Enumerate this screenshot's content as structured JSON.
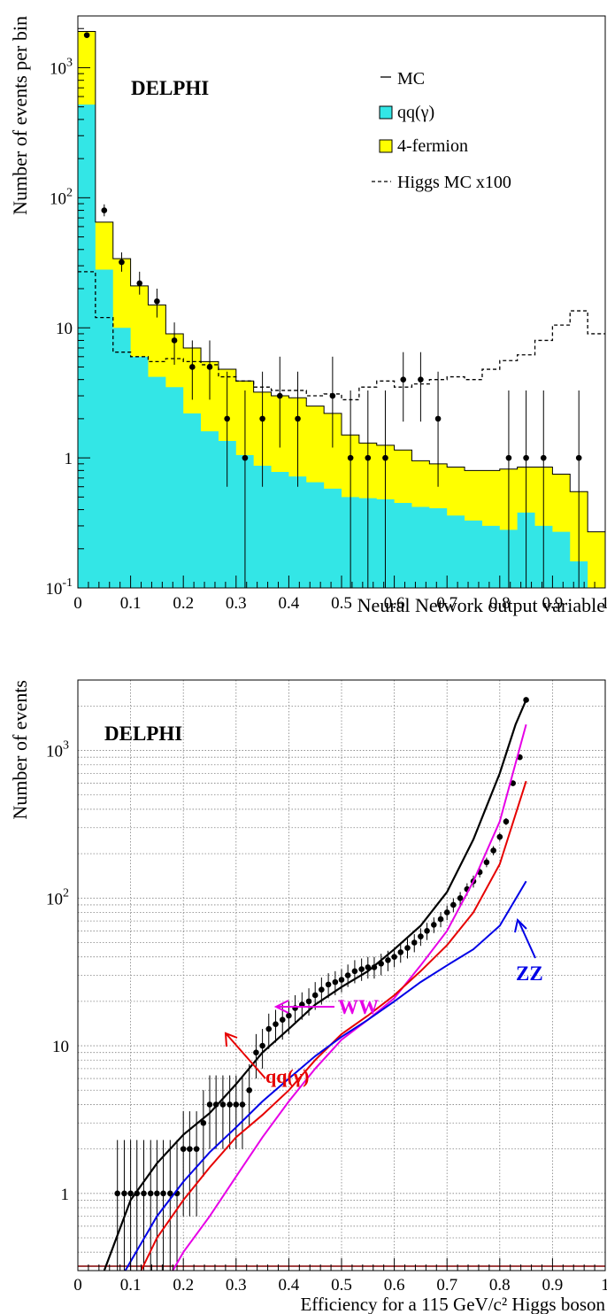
{
  "colors": {
    "qq": "#33e6e6",
    "fourf": "#ffff00",
    "ww": "#e600e6",
    "qqcurve": "#e60000",
    "zz": "#0000e6",
    "total": "#000000"
  },
  "chart_data": [
    {
      "type": "histogram",
      "title": "DELPHI",
      "xlabel": "Neural Network output variable",
      "ylabel": "Number of events per bin",
      "xlim": [
        0,
        1
      ],
      "ylim": [
        0.1,
        2500
      ],
      "yscale": "log",
      "x_ticks": [
        "0",
        "0.1",
        "0.2",
        "0.3",
        "0.4",
        "0.5",
        "0.6",
        "0.7",
        "0.8",
        "0.9",
        "1"
      ],
      "y_ticks": [
        {
          "v": 0.1,
          "base": "10",
          "exp": "-1"
        },
        {
          "v": 1,
          "base": "1",
          "exp": ""
        },
        {
          "v": 10,
          "base": "10",
          "exp": ""
        },
        {
          "v": 100,
          "base": "10",
          "exp": "2"
        },
        {
          "v": 1000,
          "base": "10",
          "exp": "3"
        }
      ],
      "legend_position": "top-right",
      "legend": {
        "mc": "MC",
        "qq": "qq(γ)",
        "fourf": "4-fermion",
        "higgs": "Higgs MC x100"
      },
      "bin_edges": [
        0,
        0.0333,
        0.0667,
        0.1,
        0.1333,
        0.1667,
        0.2,
        0.2333,
        0.2667,
        0.3,
        0.3333,
        0.3667,
        0.4,
        0.4333,
        0.4667,
        0.5,
        0.5333,
        0.5667,
        0.6,
        0.6333,
        0.6667,
        0.7,
        0.7333,
        0.7667,
        0.8,
        0.8333,
        0.8667,
        0.9,
        0.9333,
        0.9667,
        1.0
      ],
      "series": [
        {
          "name": "qq(γ)",
          "values": [
            520,
            28,
            10,
            6,
            4.2,
            3.5,
            2.2,
            1.6,
            1.35,
            1.05,
            0.87,
            0.78,
            0.72,
            0.65,
            0.58,
            0.5,
            0.49,
            0.48,
            0.45,
            0.42,
            0.41,
            0.36,
            0.33,
            0.3,
            0.28,
            0.38,
            0.3,
            0.27,
            0.16,
            0.1
          ]
        },
        {
          "name": "MC",
          "values": [
            1900,
            65,
            34,
            21,
            15,
            9,
            7,
            5.5,
            4.8,
            3.9,
            3.2,
            3.0,
            2.9,
            2.5,
            2.2,
            1.5,
            1.3,
            1.25,
            1.15,
            0.95,
            0.9,
            0.85,
            0.8,
            0.8,
            0.82,
            0.85,
            0.85,
            0.75,
            0.55,
            0.27
          ]
        },
        {
          "name": "Higgs MC x100",
          "values": [
            27,
            12,
            6.5,
            6,
            5.5,
            5.8,
            5.5,
            5.2,
            4.2,
            3.9,
            3.5,
            3.3,
            3.3,
            3.0,
            3.1,
            2.8,
            3.5,
            3.9,
            3.5,
            3.7,
            4.0,
            4.2,
            4.0,
            4.8,
            5.6,
            6.2,
            8.0,
            10.5,
            13.5,
            9.0
          ]
        }
      ],
      "data_points": [
        {
          "x": 0.017,
          "y": 1780,
          "lo": 1740,
          "hi": 1820
        },
        {
          "x": 0.05,
          "y": 80,
          "lo": 72,
          "hi": 89
        },
        {
          "x": 0.083,
          "y": 32,
          "lo": 27,
          "hi": 38
        },
        {
          "x": 0.117,
          "y": 22,
          "lo": 18,
          "hi": 27
        },
        {
          "x": 0.15,
          "y": 16,
          "lo": 12,
          "hi": 20
        },
        {
          "x": 0.183,
          "y": 8,
          "lo": 5.2,
          "hi": 11
        },
        {
          "x": 0.217,
          "y": 5,
          "lo": 2.8,
          "hi": 8
        },
        {
          "x": 0.25,
          "y": 5,
          "lo": 2.8,
          "hi": 8
        },
        {
          "x": 0.283,
          "y": 2,
          "lo": 0.6,
          "hi": 4.6
        },
        {
          "x": 0.317,
          "y": 1,
          "lo": 0.1,
          "hi": 3.3
        },
        {
          "x": 0.35,
          "y": 2,
          "lo": 0.6,
          "hi": 4.6
        },
        {
          "x": 0.383,
          "y": 3,
          "lo": 1.2,
          "hi": 6
        },
        {
          "x": 0.417,
          "y": 2,
          "lo": 0.6,
          "hi": 4.6
        },
        {
          "x": 0.483,
          "y": 3,
          "lo": 1.2,
          "hi": 6
        },
        {
          "x": 0.517,
          "y": 1,
          "lo": 0.1,
          "hi": 3.3
        },
        {
          "x": 0.55,
          "y": 1,
          "lo": 0.1,
          "hi": 3.3
        },
        {
          "x": 0.583,
          "y": 1,
          "lo": 0.1,
          "hi": 3.3
        },
        {
          "x": 0.617,
          "y": 4,
          "lo": 1.9,
          "hi": 6.5
        },
        {
          "x": 0.65,
          "y": 4,
          "lo": 1.9,
          "hi": 6.5
        },
        {
          "x": 0.683,
          "y": 2,
          "lo": 0.6,
          "hi": 4.6
        },
        {
          "x": 0.817,
          "y": 1,
          "lo": 0.1,
          "hi": 3.3
        },
        {
          "x": 0.85,
          "y": 1,
          "lo": 0.1,
          "hi": 3.3
        },
        {
          "x": 0.883,
          "y": 1,
          "lo": 0.1,
          "hi": 3.3
        },
        {
          "x": 0.95,
          "y": 1,
          "lo": 0.1,
          "hi": 3.3
        }
      ]
    },
    {
      "type": "line",
      "title": "DELPHI",
      "xlabel": "Efficiency for a 115 GeV/c² Higgs boson",
      "ylabel": "Number of events",
      "xlim": [
        0,
        1
      ],
      "ylim": [
        0.3,
        3000
      ],
      "yscale": "log",
      "grid": true,
      "x_ticks": [
        "0",
        "0.1",
        "0.2",
        "0.3",
        "0.4",
        "0.5",
        "0.6",
        "0.7",
        "0.8",
        "0.9",
        "1"
      ],
      "y_ticks": [
        {
          "v": 1,
          "base": "1",
          "exp": ""
        },
        {
          "v": 10,
          "base": "10",
          "exp": ""
        },
        {
          "v": 100,
          "base": "10",
          "exp": "2"
        },
        {
          "v": 1000,
          "base": "10",
          "exp": "3"
        }
      ],
      "annotations": {
        "ww": "WW",
        "qq": "qq(γ)",
        "zz": "ZZ"
      },
      "series": [
        {
          "name": "total",
          "x": [
            0.05,
            0.1,
            0.15,
            0.2,
            0.25,
            0.3,
            0.35,
            0.4,
            0.45,
            0.5,
            0.55,
            0.6,
            0.65,
            0.7,
            0.75,
            0.8,
            0.83,
            0.85
          ],
          "y": [
            0.3,
            0.9,
            1.6,
            2.5,
            3.5,
            5.5,
            9,
            13,
            19,
            25,
            32,
            45,
            65,
            110,
            250,
            700,
            1500,
            2200
          ]
        },
        {
          "name": "WW",
          "x": [
            0.18,
            0.2,
            0.25,
            0.3,
            0.35,
            0.4,
            0.45,
            0.5,
            0.55,
            0.6,
            0.65,
            0.7,
            0.75,
            0.8,
            0.85
          ],
          "y": [
            0.3,
            0.4,
            0.7,
            1.3,
            2.4,
            4.2,
            7,
            11,
            15,
            21,
            35,
            60,
            130,
            330,
            1500
          ]
        },
        {
          "name": "qq(γ)",
          "x": [
            0.12,
            0.15,
            0.2,
            0.25,
            0.3,
            0.35,
            0.4,
            0.45,
            0.5,
            0.55,
            0.6,
            0.65,
            0.7,
            0.75,
            0.8,
            0.85
          ],
          "y": [
            0.3,
            0.5,
            0.9,
            1.5,
            2.4,
            3.4,
            5,
            8,
            12,
            16,
            22,
            32,
            48,
            80,
            170,
            620
          ]
        },
        {
          "name": "ZZ",
          "x": [
            0.09,
            0.15,
            0.2,
            0.25,
            0.3,
            0.35,
            0.4,
            0.45,
            0.5,
            0.55,
            0.6,
            0.65,
            0.7,
            0.75,
            0.8,
            0.85
          ],
          "y": [
            0.3,
            0.7,
            1.2,
            1.9,
            2.8,
            4.2,
            6,
            8.5,
            11.5,
            15,
            20,
            27,
            35,
            45,
            65,
            130
          ]
        }
      ],
      "data_points": [
        {
          "x": 0.075,
          "y": 1,
          "lo": 0.3,
          "hi": 2.3
        },
        {
          "x": 0.088,
          "y": 1,
          "lo": 0.3,
          "hi": 2.3
        },
        {
          "x": 0.1,
          "y": 1,
          "lo": 0.3,
          "hi": 2.3
        },
        {
          "x": 0.112,
          "y": 1,
          "lo": 0.3,
          "hi": 2.3
        },
        {
          "x": 0.125,
          "y": 1,
          "lo": 0.3,
          "hi": 2.3
        },
        {
          "x": 0.138,
          "y": 1,
          "lo": 0.3,
          "hi": 2.3
        },
        {
          "x": 0.15,
          "y": 1,
          "lo": 0.3,
          "hi": 2.3
        },
        {
          "x": 0.162,
          "y": 1,
          "lo": 0.3,
          "hi": 2.3
        },
        {
          "x": 0.175,
          "y": 1,
          "lo": 0.3,
          "hi": 2.3
        },
        {
          "x": 0.188,
          "y": 1,
          "lo": 0.3,
          "hi": 2.3
        },
        {
          "x": 0.2,
          "y": 2,
          "lo": 0.7,
          "hi": 3.6
        },
        {
          "x": 0.212,
          "y": 2,
          "lo": 0.7,
          "hi": 3.6
        },
        {
          "x": 0.225,
          "y": 2,
          "lo": 0.7,
          "hi": 3.6
        },
        {
          "x": 0.238,
          "y": 3,
          "lo": 1.3,
          "hi": 5
        },
        {
          "x": 0.25,
          "y": 4,
          "lo": 2,
          "hi": 6.3
        },
        {
          "x": 0.262,
          "y": 4,
          "lo": 2,
          "hi": 6.3
        },
        {
          "x": 0.275,
          "y": 4,
          "lo": 2,
          "hi": 6.3
        },
        {
          "x": 0.288,
          "y": 4,
          "lo": 2,
          "hi": 6.3
        },
        {
          "x": 0.3,
          "y": 4,
          "lo": 2,
          "hi": 6.3
        },
        {
          "x": 0.312,
          "y": 4,
          "lo": 2,
          "hi": 6.3
        },
        {
          "x": 0.325,
          "y": 5,
          "lo": 2.8,
          "hi": 7.5
        },
        {
          "x": 0.338,
          "y": 9,
          "lo": 6,
          "hi": 12
        },
        {
          "x": 0.35,
          "y": 10,
          "lo": 7,
          "hi": 13
        },
        {
          "x": 0.362,
          "y": 13,
          "lo": 9.5,
          "hi": 16.5
        },
        {
          "x": 0.375,
          "y": 14,
          "lo": 10.5,
          "hi": 17.5
        },
        {
          "x": 0.388,
          "y": 15,
          "lo": 11,
          "hi": 19
        },
        {
          "x": 0.4,
          "y": 16,
          "lo": 12,
          "hi": 20
        },
        {
          "x": 0.412,
          "y": 18,
          "lo": 14,
          "hi": 22
        },
        {
          "x": 0.425,
          "y": 19,
          "lo": 15,
          "hi": 23
        },
        {
          "x": 0.438,
          "y": 20,
          "lo": 16,
          "hi": 24.5
        },
        {
          "x": 0.45,
          "y": 22,
          "lo": 17.5,
          "hi": 27
        },
        {
          "x": 0.462,
          "y": 24,
          "lo": 19,
          "hi": 29
        },
        {
          "x": 0.475,
          "y": 26,
          "lo": 21,
          "hi": 31
        },
        {
          "x": 0.488,
          "y": 27,
          "lo": 22,
          "hi": 32
        },
        {
          "x": 0.5,
          "y": 28,
          "lo": 23,
          "hi": 33
        },
        {
          "x": 0.512,
          "y": 30,
          "lo": 25,
          "hi": 35.5
        },
        {
          "x": 0.525,
          "y": 32,
          "lo": 26.5,
          "hi": 38
        },
        {
          "x": 0.538,
          "y": 33,
          "lo": 27.5,
          "hi": 39
        },
        {
          "x": 0.55,
          "y": 34,
          "lo": 28.5,
          "hi": 40
        },
        {
          "x": 0.562,
          "y": 34,
          "lo": 28.5,
          "hi": 40
        },
        {
          "x": 0.575,
          "y": 36,
          "lo": 30,
          "hi": 42
        },
        {
          "x": 0.588,
          "y": 38,
          "lo": 32,
          "hi": 44
        },
        {
          "x": 0.6,
          "y": 40,
          "lo": 34,
          "hi": 46
        },
        {
          "x": 0.612,
          "y": 43,
          "lo": 36.5,
          "hi": 49.5
        },
        {
          "x": 0.625,
          "y": 46,
          "lo": 39,
          "hi": 53
        },
        {
          "x": 0.638,
          "y": 50,
          "lo": 43,
          "hi": 57
        },
        {
          "x": 0.65,
          "y": 55,
          "lo": 47.5,
          "hi": 62.5
        },
        {
          "x": 0.662,
          "y": 60,
          "lo": 52,
          "hi": 68
        },
        {
          "x": 0.675,
          "y": 66,
          "lo": 58,
          "hi": 74
        },
        {
          "x": 0.688,
          "y": 72,
          "lo": 63.5,
          "hi": 80.5
        },
        {
          "x": 0.7,
          "y": 80,
          "lo": 71,
          "hi": 89
        },
        {
          "x": 0.712,
          "y": 90,
          "lo": 80.5,
          "hi": 99.5
        },
        {
          "x": 0.725,
          "y": 100,
          "lo": 90,
          "hi": 110
        },
        {
          "x": 0.738,
          "y": 115,
          "lo": 104,
          "hi": 126
        },
        {
          "x": 0.75,
          "y": 130,
          "lo": 118,
          "hi": 142
        },
        {
          "x": 0.762,
          "y": 150,
          "lo": 138,
          "hi": 162
        },
        {
          "x": 0.775,
          "y": 175,
          "lo": 162,
          "hi": 188
        },
        {
          "x": 0.788,
          "y": 210,
          "lo": 195,
          "hi": 225
        },
        {
          "x": 0.8,
          "y": 260,
          "lo": 244,
          "hi": 276
        },
        {
          "x": 0.812,
          "y": 330,
          "lo": 312,
          "hi": 348
        },
        {
          "x": 0.825,
          "y": 600,
          "lo": 575,
          "hi": 625
        },
        {
          "x": 0.838,
          "y": 900,
          "lo": 870,
          "hi": 930
        },
        {
          "x": 0.85,
          "y": 2200,
          "lo": 2150,
          "hi": 2250
        }
      ]
    }
  ]
}
